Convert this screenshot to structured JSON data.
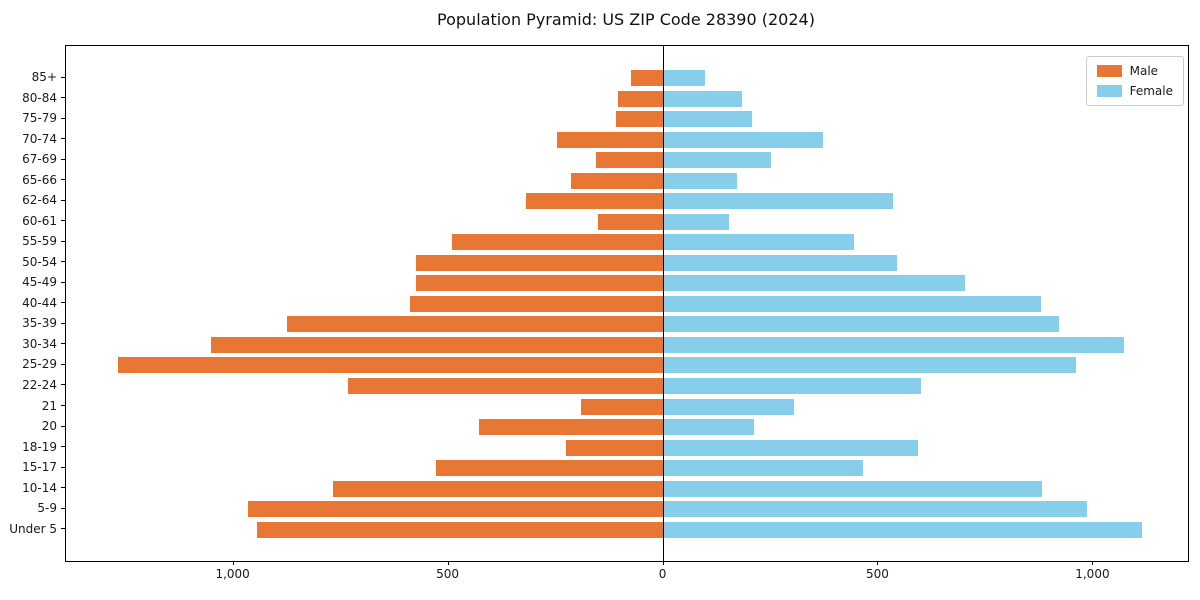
{
  "title": "Population Pyramid: US ZIP Code 28390 (2024)",
  "chart_data": {
    "type": "bar",
    "variant": "population-pyramid",
    "orientation": "horizontal",
    "title": "Population Pyramid: US ZIP Code 28390 (2024)",
    "categories_top_to_bottom": [
      "85+",
      "80-84",
      "75-79",
      "70-74",
      "67-69",
      "65-66",
      "62-64",
      "60-61",
      "55-59",
      "50-54",
      "45-49",
      "40-44",
      "35-39",
      "30-34",
      "25-29",
      "22-24",
      "21",
      "20",
      "18-19",
      "15-17",
      "10-14",
      "5-9",
      "Under 5"
    ],
    "series": [
      {
        "name": "Male",
        "side": "left",
        "color": "#E87634",
        "values": [
          75,
          105,
          110,
          247,
          157,
          216,
          319,
          153,
          492,
          577,
          575,
          589,
          875,
          1052,
          1269,
          734,
          191,
          430,
          227,
          529,
          770,
          967,
          946
        ]
      },
      {
        "name": "Female",
        "side": "right",
        "color": "#87CEEB",
        "values": [
          96,
          183,
          206,
          371,
          250,
          171,
          534,
          152,
          444,
          544,
          702,
          877,
          921,
          1070,
          960,
          600,
          304,
          210,
          593,
          465,
          881,
          985,
          1113
        ]
      }
    ],
    "x_axis": {
      "tick_values": [
        -1000,
        -500,
        0,
        500,
        1000
      ],
      "tick_labels": [
        "1,000",
        "500",
        "0",
        "500",
        "1,000"
      ],
      "xlim": [
        -1390,
        1220
      ]
    },
    "legend": {
      "position": "upper-right",
      "entries": [
        "Male",
        "Female"
      ]
    },
    "grid": false,
    "zero_line": true
  }
}
